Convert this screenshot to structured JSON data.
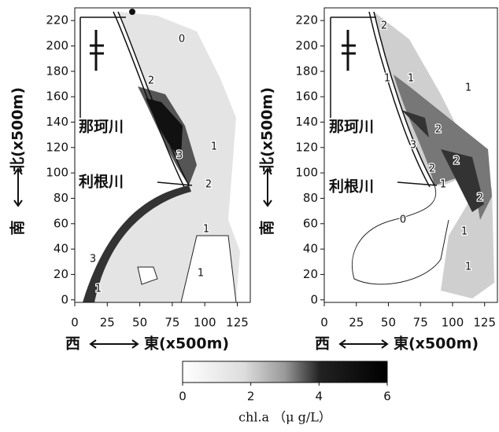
{
  "chart_data": [
    {
      "type": "contour",
      "xlim": [
        0,
        135
      ],
      "ylim": [
        -2,
        230
      ],
      "xticks": [
        0,
        25,
        50,
        75,
        100,
        125
      ],
      "yticks": [
        0,
        20,
        40,
        60,
        80,
        100,
        120,
        140,
        160,
        180,
        200,
        220
      ],
      "ylabel": "北(x500m)",
      "ylabel_south": "南",
      "xlabel_west": "西",
      "xlabel": "東(x500m)",
      "annotations": [
        "那珂川",
        "利根川"
      ],
      "contour_labels": [
        0,
        2,
        3,
        1,
        2,
        1,
        3,
        1,
        1
      ]
    },
    {
      "type": "contour",
      "xlim": [
        0,
        135
      ],
      "ylim": [
        -2,
        230
      ],
      "xticks": [
        0,
        25,
        50,
        75,
        100,
        125
      ],
      "yticks": [
        0,
        20,
        40,
        60,
        80,
        100,
        120,
        140,
        160,
        180,
        200,
        220
      ],
      "ylabel": "北(x500m)",
      "ylabel_south": "南",
      "xlabel_west": "西",
      "xlabel": "東(x500m)",
      "annotations": [
        "那珂川",
        "利根川"
      ],
      "contour_labels": [
        2,
        1,
        1,
        1,
        2,
        3,
        2,
        2,
        1,
        2,
        0,
        1,
        1
      ]
    },
    {
      "type": "colorbar",
      "label": "chl.a （μ g/L）",
      "xlim": [
        0,
        6
      ],
      "xticks": [
        0,
        2,
        4,
        6
      ]
    }
  ]
}
